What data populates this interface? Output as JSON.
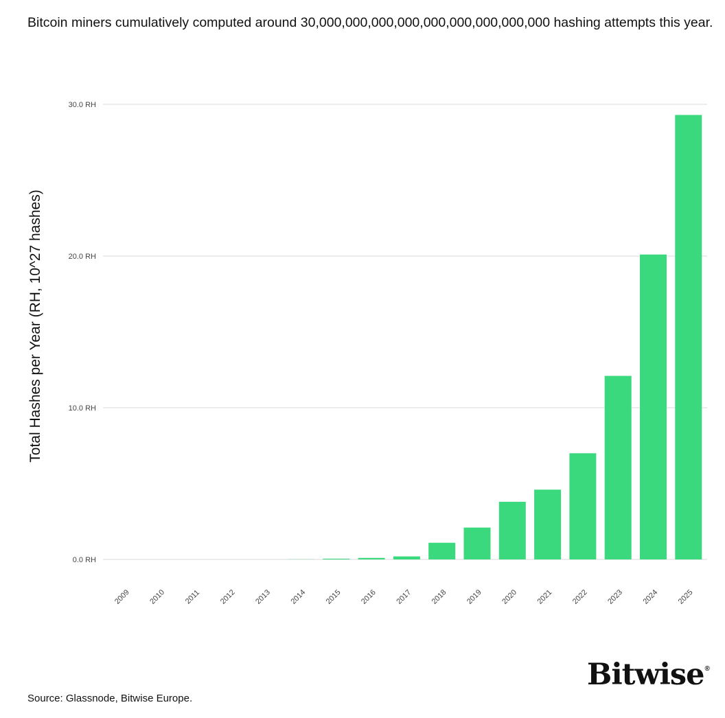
{
  "headline": "Bitcoin miners cumulatively computed around 30,000,000,000,000,000,000,000,000,000 hashing attempts this year.",
  "source": "Source: Glassnode, Bitwise Europe.",
  "brand": {
    "name": "Bitwise",
    "mark": "®"
  },
  "colors": {
    "bar": "#3ad97e",
    "grid": "#d9d9d9",
    "text": "#111111"
  },
  "chart_data": {
    "type": "bar",
    "title": "Bitcoin miners cumulatively computed around 30,000,000,000,000,000,000,000,000,000 hashing attempts this year.",
    "xlabel": "",
    "ylabel": "Total Hashes per Year (RH, 10^27 hashes)",
    "categories": [
      "2009",
      "2010",
      "2011",
      "2012",
      "2013",
      "2014",
      "2015",
      "2016",
      "2017",
      "2018",
      "2019",
      "2020",
      "2021",
      "2022",
      "2023",
      "2024",
      "2025"
    ],
    "values": [
      0,
      0,
      0,
      0,
      0,
      0.01,
      0.05,
      0.1,
      0.2,
      1.1,
      2.1,
      3.8,
      4.6,
      7.0,
      12.1,
      20.1,
      29.3
    ],
    "ylim": [
      0,
      30
    ],
    "yticks": [
      0,
      10,
      20,
      30
    ],
    "ytick_labels": [
      "0.0 RH",
      "10.0 RH",
      "20.0 RH",
      "30.0 RH"
    ],
    "grid": true,
    "legend": "none"
  }
}
